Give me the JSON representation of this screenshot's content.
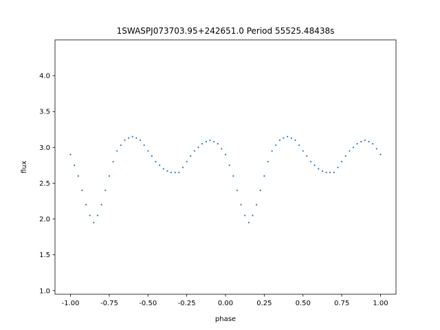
{
  "chart_data": {
    "type": "scatter",
    "title": "1SWASPJ073703.95+242651.0 Period 55525.48438s",
    "xlabel": "phase",
    "ylabel": "flux",
    "xlim": [
      -1.1,
      1.1
    ],
    "ylim": [
      0.95,
      4.5
    ],
    "xticks": [
      "-1.00",
      "-0.75",
      "-0.50",
      "-0.25",
      "0.00",
      "0.25",
      "0.50",
      "0.75",
      "1.00"
    ],
    "yticks": [
      "1.0",
      "1.5",
      "2.0",
      "2.5",
      "3.0",
      "3.5",
      "4.0"
    ],
    "grid": false,
    "color": "#1f77b4",
    "series": [
      {
        "x": [
          -1,
          -0.975,
          -0.95,
          -0.925,
          -0.9,
          -0.875,
          -0.85,
          -0.825,
          -0.8,
          -0.775,
          -0.75,
          -0.725,
          -0.7,
          -0.675,
          -0.65,
          -0.625,
          -0.6,
          -0.575,
          -0.55,
          -0.525,
          -0.5,
          -0.475,
          -0.45,
          -0.425,
          -0.4,
          -0.375,
          -0.35,
          -0.325,
          -0.3,
          -0.275,
          -0.25,
          -0.225,
          -0.2,
          -0.175,
          -0.15,
          -0.125,
          -0.1,
          -0.075,
          -0.05,
          -0.025,
          0,
          0.025,
          0.05,
          0.075,
          0.1,
          0.125,
          0.15,
          0.175,
          0.2,
          0.225,
          0.25,
          0.275,
          0.3,
          0.325,
          0.35,
          0.375,
          0.4,
          0.425,
          0.45,
          0.475,
          0.5,
          0.525,
          0.55,
          0.575,
          0.6,
          0.625,
          0.65,
          0.675,
          0.7,
          0.725,
          0.75,
          0.775,
          0.8,
          0.825,
          0.85,
          0.875,
          0.9,
          0.925,
          0.95,
          0.975,
          1
        ],
        "y": [
          2.9,
          2.75,
          2.6,
          2.4,
          2.2,
          2.05,
          1.95,
          2.05,
          2.2,
          2.4,
          2.6,
          2.8,
          2.95,
          3.03,
          3.1,
          3.13,
          3.15,
          3.13,
          3.1,
          3.03,
          2.95,
          2.88,
          2.8,
          2.75,
          2.7,
          2.67,
          2.65,
          2.65,
          2.65,
          2.72,
          2.8,
          2.88,
          2.95,
          3.0,
          3.05,
          3.08,
          3.1,
          3.08,
          3.05,
          2.98,
          2.9,
          2.75,
          2.6,
          2.4,
          2.2,
          2.05,
          1.95,
          2.05,
          2.2,
          2.4,
          2.6,
          2.8,
          2.95,
          3.03,
          3.1,
          3.13,
          3.15,
          3.13,
          3.1,
          3.03,
          2.95,
          2.88,
          2.8,
          2.75,
          2.7,
          2.67,
          2.65,
          2.65,
          2.65,
          2.72,
          2.8,
          2.88,
          2.95,
          3.0,
          3.05,
          3.08,
          3.1,
          3.08,
          3.05,
          2.98,
          2.9
        ]
      }
    ]
  }
}
